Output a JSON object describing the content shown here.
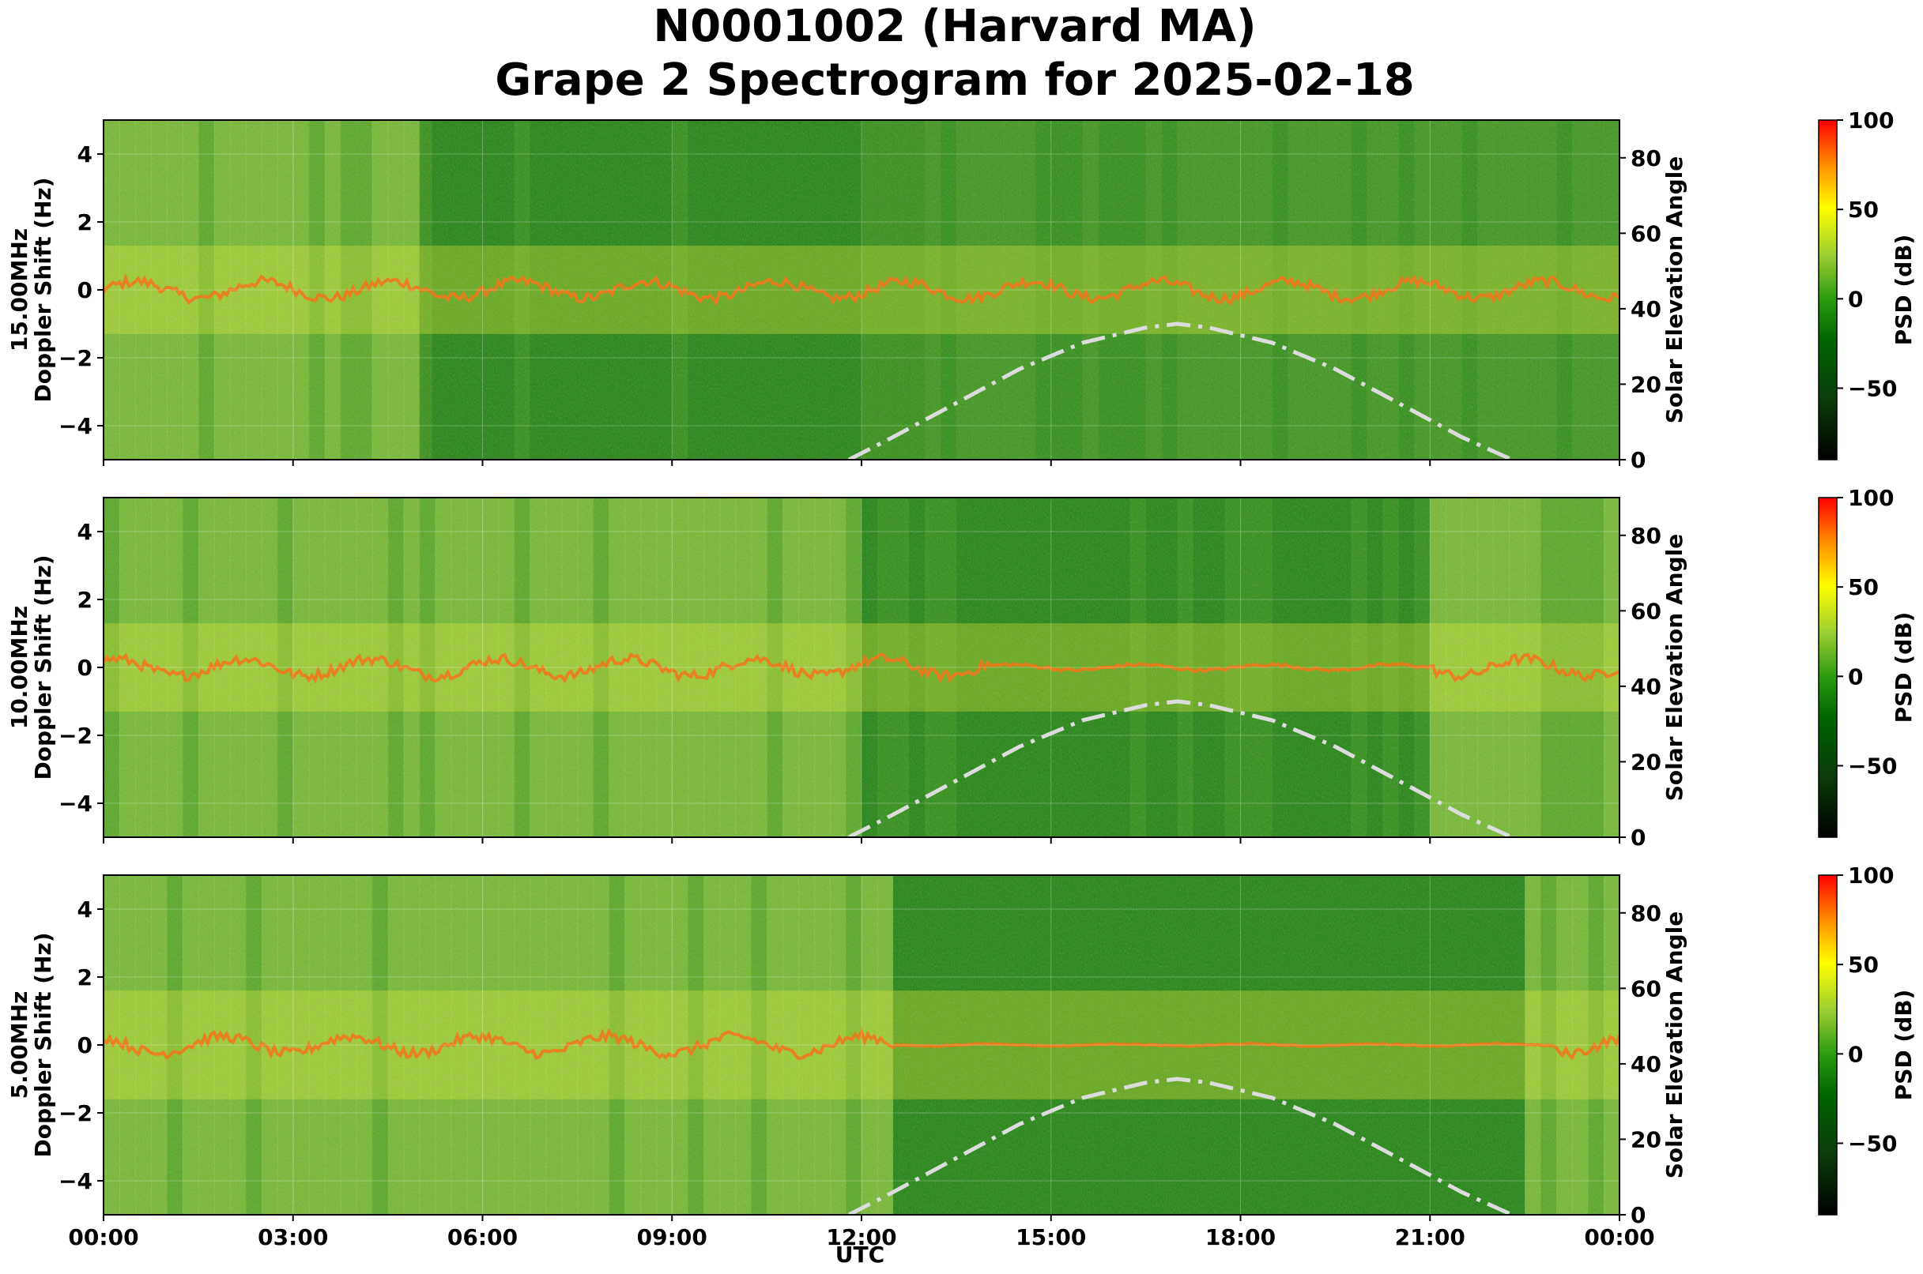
{
  "title_line1": "N0001002 (Harvard MA)",
  "title_line2": "Grape 2 Spectrogram for 2025-02-18",
  "chart_data": {
    "type": "heatmap",
    "title": "N0001002 (Harvard MA) Grape 2 Spectrogram for 2025-02-18",
    "xlabel": "UTC",
    "x_ticks": [
      "00:00",
      "03:00",
      "06:00",
      "09:00",
      "12:00",
      "15:00",
      "18:00",
      "21:00",
      "00:00"
    ],
    "xlim_hours": [
      0,
      24
    ],
    "grid": true,
    "panels": [
      {
        "ylabel_line1": "15.00MHz",
        "ylabel_line2": "Doppler Shift (Hz)",
        "ylim": [
          -5,
          5
        ],
        "y_ticks": [
          "4",
          "2",
          "0",
          "−2",
          "−4"
        ],
        "y2label": "Solar Elevation Angle",
        "y2lim": [
          0,
          90
        ],
        "y2_ticks": [
          "80",
          "60",
          "40",
          "20",
          "0"
        ],
        "colorbar_label": "PSD (dB)",
        "colorbar_ticks": [
          "100",
          "50",
          "0",
          "−50"
        ],
        "colorbar_range": [
          -90,
          100
        ]
      },
      {
        "ylabel_line1": "10.00MHz",
        "ylabel_line2": "Doppler Shift (Hz)",
        "ylim": [
          -5,
          5
        ],
        "y_ticks": [
          "4",
          "2",
          "0",
          "−2",
          "−4"
        ],
        "y2label": "Solar Elevation Angle",
        "y2lim": [
          0,
          90
        ],
        "y2_ticks": [
          "80",
          "60",
          "40",
          "20",
          "0"
        ],
        "colorbar_label": "PSD (dB)",
        "colorbar_ticks": [
          "100",
          "50",
          "0",
          "−50"
        ],
        "colorbar_range": [
          -90,
          100
        ]
      },
      {
        "ylabel_line1": "5.00MHz",
        "ylabel_line2": "Doppler Shift (Hz)",
        "ylim": [
          -5,
          5
        ],
        "y_ticks": [
          "4",
          "2",
          "0",
          "−2",
          "−4"
        ],
        "y2label": "Solar Elevation Angle",
        "y2lim": [
          0,
          90
        ],
        "y2_ticks": [
          "80",
          "60",
          "40",
          "20",
          "0"
        ],
        "colorbar_label": "PSD (dB)",
        "colorbar_ticks": [
          "100",
          "50",
          "0",
          "−50"
        ],
        "colorbar_range": [
          -90,
          100
        ]
      }
    ],
    "solar_elevation_series": {
      "x_hours": [
        11.8,
        12.5,
        13.5,
        14.5,
        15.5,
        16.5,
        17.0,
        17.5,
        18.5,
        19.5,
        20.5,
        21.5,
        22.3
      ],
      "y_degrees": [
        0,
        6,
        15,
        24,
        31,
        35,
        36,
        35,
        31,
        24,
        15,
        6,
        0
      ],
      "line_color": "#dcdcdc",
      "line_style": "dash-dot"
    },
    "colormap": [
      "#000000",
      "#006400",
      "#2a9a10",
      "#9acd32",
      "#ffff00",
      "#ff8c00",
      "#ff0000"
    ]
  }
}
